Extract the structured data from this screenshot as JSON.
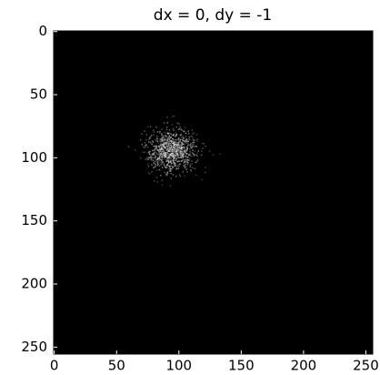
{
  "chart_data": {
    "type": "image",
    "title": "dx = 0, dy = -1",
    "xlim": [
      -0.5,
      255.5
    ],
    "ylim": [
      255.5,
      -0.5
    ],
    "xticks": [
      0,
      50,
      100,
      150,
      200,
      250
    ],
    "yticks": [
      0,
      50,
      100,
      150,
      200,
      250
    ]
  }
}
